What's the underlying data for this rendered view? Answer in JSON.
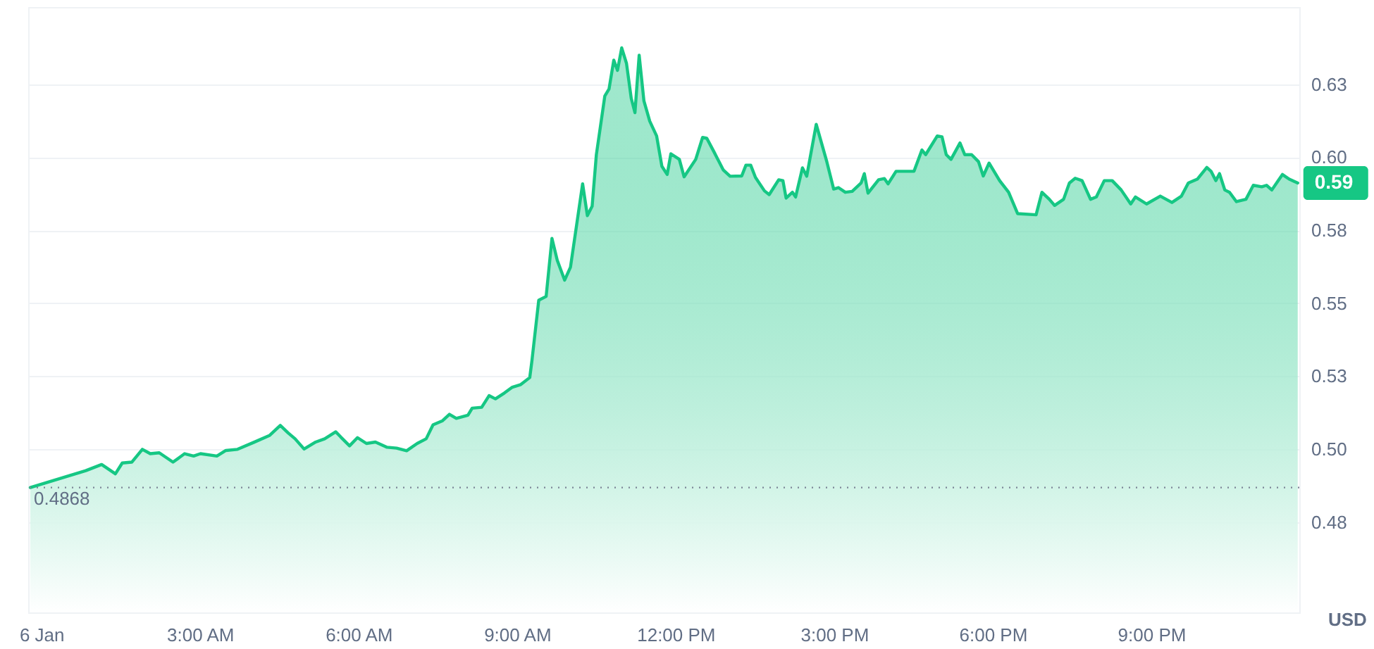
{
  "chart_data": {
    "type": "area",
    "ylabel": "USD",
    "grid": "y",
    "legend": false,
    "marker": "none",
    "line_style": "solid",
    "x": [
      -0.21,
      0.84,
      1.14,
      1.4,
      1.53,
      1.71,
      1.91,
      2.06,
      2.23,
      2.49,
      2.71,
      2.88,
      3.01,
      3.32,
      3.49,
      3.71,
      4.02,
      4.32,
      4.52,
      4.67,
      4.8,
      4.97,
      5.19,
      5.36,
      5.57,
      5.67,
      5.83,
      5.98,
      6.15,
      6.32,
      6.54,
      6.72,
      6.91,
      7.11,
      7.28,
      7.41,
      7.59,
      7.72,
      7.85,
      8.07,
      8.15,
      8.33,
      8.47,
      8.59,
      8.76,
      8.91,
      9.07,
      9.24,
      9.28,
      9.41,
      9.55,
      9.66,
      9.76,
      9.9,
      10.01,
      10.24,
      10.33,
      10.42,
      10.5,
      10.66,
      10.74,
      10.83,
      10.9,
      10.98,
      11.07,
      11.16,
      11.23,
      11.31,
      11.4,
      11.51,
      11.64,
      11.74,
      11.84,
      11.91,
      12.07,
      12.16,
      12.38,
      12.51,
      12.59,
      12.73,
      12.9,
      13.03,
      13.25,
      13.33,
      13.42,
      13.51,
      13.68,
      13.77,
      13.95,
      14.03,
      14.09,
      14.21,
      14.27,
      14.4,
      14.48,
      14.66,
      14.86,
      14.99,
      15.08,
      15.21,
      15.34,
      15.51,
      15.57,
      15.64,
      15.84,
      15.95,
      16.02,
      16.17,
      16.51,
      16.66,
      16.73,
      16.95,
      17.04,
      17.12,
      17.21,
      17.38,
      17.47,
      17.6,
      17.73,
      17.82,
      17.93,
      18.13,
      18.3,
      18.47,
      18.82,
      18.93,
      19.07,
      19.17,
      19.34,
      19.45,
      19.56,
      19.69,
      19.85,
      19.96,
      20.11,
      20.26,
      20.43,
      20.61,
      20.7,
      20.91,
      21.17,
      21.39,
      21.57,
      21.7,
      21.87,
      22.05,
      22.13,
      22.22,
      22.29,
      22.39,
      22.48,
      22.61,
      22.79,
      22.93,
      23.09,
      23.18,
      23.28,
      23.48,
      23.61,
      23.77
    ],
    "series": [
      {
        "color": "#16c784",
        "values": [
          0.4868,
          0.4926,
          0.4947,
          0.4915,
          0.4952,
          0.4955,
          0.4999,
          0.4984,
          0.4987,
          0.4955,
          0.4984,
          0.4976,
          0.4984,
          0.4976,
          0.4995,
          0.4999,
          0.5023,
          0.5047,
          0.5081,
          0.5055,
          0.5035,
          0.5,
          0.5024,
          0.5035,
          0.5059,
          0.504,
          0.5011,
          0.5039,
          0.5019,
          0.5024,
          0.5006,
          0.5003,
          0.4994,
          0.5019,
          0.5035,
          0.5083,
          0.5097,
          0.5119,
          0.5105,
          0.5116,
          0.514,
          0.5143,
          0.5183,
          0.5172,
          0.5192,
          0.5212,
          0.5221,
          0.5245,
          0.5301,
          0.551,
          0.5523,
          0.5722,
          0.5647,
          0.5579,
          0.5623,
          0.5909,
          0.58,
          0.5832,
          0.6009,
          0.621,
          0.6234,
          0.6333,
          0.6298,
          0.6375,
          0.6322,
          0.6202,
          0.6153,
          0.635,
          0.6193,
          0.6124,
          0.6073,
          0.5969,
          0.5941,
          0.6012,
          0.5993,
          0.5933,
          0.5993,
          0.6068,
          0.6065,
          0.6017,
          0.5957,
          0.5935,
          0.5936,
          0.5973,
          0.5973,
          0.5931,
          0.5885,
          0.5872,
          0.5923,
          0.592,
          0.586,
          0.588,
          0.5864,
          0.5964,
          0.5935,
          0.6113,
          0.5985,
          0.5891,
          0.5896,
          0.588,
          0.5883,
          0.5912,
          0.5944,
          0.5877,
          0.5923,
          0.5927,
          0.5909,
          0.5952,
          0.5952,
          0.6025,
          0.6009,
          0.6073,
          0.607,
          0.6009,
          0.5993,
          0.6049,
          0.6009,
          0.6009,
          0.5985,
          0.5936,
          0.598,
          0.592,
          0.588,
          0.5807,
          0.5803,
          0.588,
          0.5856,
          0.5835,
          0.5856,
          0.5912,
          0.5928,
          0.592,
          0.5856,
          0.5864,
          0.592,
          0.592,
          0.5888,
          0.584,
          0.5864,
          0.584,
          0.5867,
          0.5845,
          0.5867,
          0.5912,
          0.5925,
          0.5965,
          0.5952,
          0.592,
          0.5944,
          0.5888,
          0.588,
          0.5848,
          0.5856,
          0.5904,
          0.5899,
          0.5904,
          0.5888,
          0.5941,
          0.5925,
          0.5912
        ]
      }
    ],
    "xlim": [
      -0.25,
      23.8
    ],
    "xticks": [
      {
        "value": 0,
        "label": "6 Jan"
      },
      {
        "value": 3,
        "label": "3:00 AM"
      },
      {
        "value": 6,
        "label": "6:00 AM"
      },
      {
        "value": 9,
        "label": "9:00 AM"
      },
      {
        "value": 12,
        "label": "12:00 PM"
      },
      {
        "value": 15,
        "label": "3:00 PM"
      },
      {
        "value": 18,
        "label": "6:00 PM"
      },
      {
        "value": 21,
        "label": "9:00 PM"
      }
    ],
    "ylim": [
      0.444,
      0.6515
    ],
    "yticks": [
      {
        "value": 0.475,
        "label": "0.48"
      },
      {
        "value": 0.5,
        "label": "0.50"
      },
      {
        "value": 0.525,
        "label": "0.53"
      },
      {
        "value": 0.55,
        "label": "0.55"
      },
      {
        "value": 0.575,
        "label": "0.58"
      },
      {
        "value": 0.6,
        "label": "0.60"
      },
      {
        "value": 0.625,
        "label": "0.63"
      }
    ],
    "ref_lines": [
      {
        "axis": "y",
        "value": 0.4868,
        "label": "0.4868",
        "line_style": "dotted",
        "color": "#7d8597"
      }
    ],
    "annotations": [
      {
        "text": "0.59",
        "x": 23.77,
        "y": 0.5912
      }
    ]
  }
}
